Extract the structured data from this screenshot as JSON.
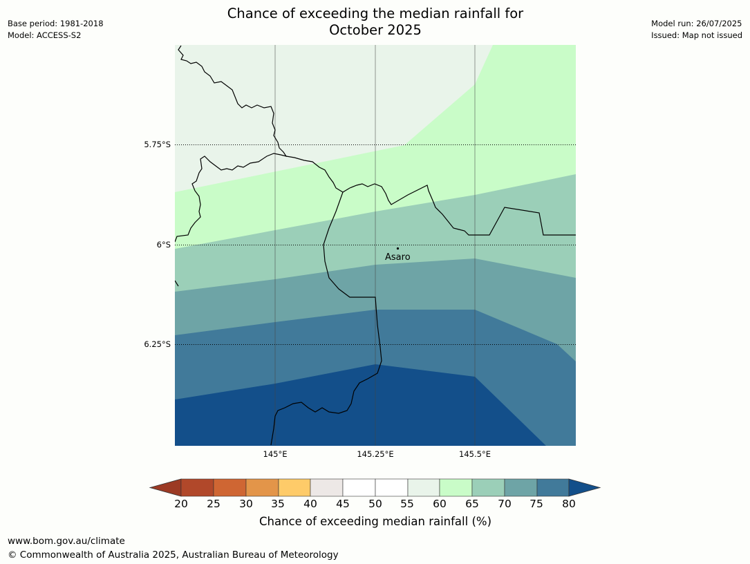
{
  "header": {
    "title_line1": "Chance of exceeding the median rainfall for",
    "title_line2": "October 2025",
    "base_period": "Base period: 1981-2018",
    "model": "Model: ACCESS-S2",
    "model_run": "Model run: 26/07/2025",
    "issued": "Issued: Map not issued"
  },
  "map": {
    "lat_labels": [
      "5.75°S",
      "6°S",
      "6.25°S"
    ],
    "lon_labels": [
      "145°E",
      "145.25°E",
      "145.5°E"
    ],
    "places": [
      {
        "name": "Asaro",
        "lon": 145.28,
        "lat": -6.01
      }
    ],
    "extent": {
      "lon_min": 144.75,
      "lon_max": 145.75,
      "lat_min": -6.5,
      "lat_max": -5.5
    },
    "contour_fills": {
      "55-60": "#e9f4ea",
      "60-65": "#c9fcc8",
      "65-70": "#9bcfb8",
      "70-75": "#6ea4a6",
      "75-80": "#417a9a",
      "80+": "#134f8a"
    }
  },
  "colorbar": {
    "ticks": [
      "20",
      "25",
      "30",
      "35",
      "40",
      "45",
      "50",
      "55",
      "60",
      "65",
      "70",
      "75",
      "80"
    ],
    "under_color": "#9c3a24",
    "over_color": "#134f8a",
    "colors": [
      "#b1482a",
      "#cf6633",
      "#e39549",
      "#fecb69",
      "#ede8e6",
      "#ffffff",
      "#ffffff",
      "#e9f4ea",
      "#c9fcc8",
      "#9bcfb8",
      "#6ea4a6",
      "#417a9a"
    ],
    "label": "Chance of exceeding median rainfall (%)"
  },
  "footer": {
    "url": "www.bom.gov.au/climate",
    "copyright": "© Commonwealth of Australia 2025, Australian Bureau of Meteorology"
  }
}
